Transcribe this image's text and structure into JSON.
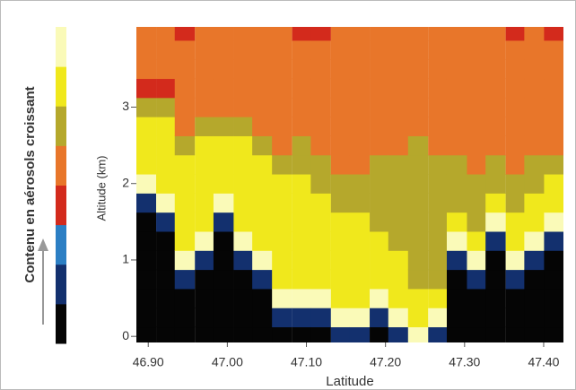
{
  "chart_data": {
    "type": "heatmap",
    "colorbar_label": "Contenu en aérosols croissant",
    "x_label": "Latitude",
    "y_label": "Altitude (km)",
    "palette": [
      "#050505",
      "#13306e",
      "#2c7fc4",
      "#d32a1c",
      "#e8762a",
      "#b5a82c",
      "#f0e81c",
      "#fafab8"
    ],
    "x": [
      46.897,
      46.922,
      46.946,
      46.971,
      46.995,
      47.02,
      47.044,
      47.069,
      47.094,
      47.118,
      47.143,
      47.167,
      47.192,
      47.216,
      47.241,
      47.266,
      47.29,
      47.315,
      47.339,
      47.364,
      47.388,
      47.413
    ],
    "y": [
      0,
      0.25,
      0.5,
      0.75,
      1,
      1.25,
      1.5,
      1.75,
      2,
      2.25,
      2.5,
      2.75,
      3,
      3.25,
      3.5,
      3.75,
      4
    ],
    "z": [
      [
        0,
        0,
        0,
        0,
        0,
        0,
        0,
        1,
        7,
        6,
        6,
        6,
        5,
        3,
        4,
        4,
        4
      ],
      [
        0,
        0,
        0,
        0,
        0,
        0,
        1,
        7,
        6,
        6,
        6,
        6,
        5,
        3,
        4,
        4,
        4
      ],
      [
        0,
        0,
        0,
        1,
        7,
        6,
        6,
        6,
        6,
        6,
        5,
        4,
        4,
        4,
        4,
        4,
        3
      ],
      [
        0,
        0,
        0,
        0,
        1,
        7,
        6,
        6,
        6,
        6,
        6,
        5,
        4,
        4,
        4,
        4,
        4
      ],
      [
        0,
        0,
        0,
        0,
        0,
        0,
        1,
        7,
        6,
        6,
        6,
        5,
        4,
        4,
        4,
        4,
        4
      ],
      [
        0,
        0,
        0,
        0,
        1,
        7,
        6,
        6,
        6,
        6,
        6,
        5,
        4,
        4,
        4,
        4,
        4
      ],
      [
        0,
        0,
        0,
        1,
        7,
        6,
        6,
        6,
        6,
        6,
        5,
        4,
        4,
        4,
        4,
        4,
        4
      ],
      [
        0,
        1,
        7,
        6,
        6,
        6,
        6,
        6,
        6,
        5,
        4,
        4,
        4,
        4,
        4,
        4,
        4
      ],
      [
        0,
        1,
        7,
        6,
        6,
        6,
        6,
        6,
        6,
        5,
        5,
        4,
        4,
        4,
        4,
        4,
        3
      ],
      [
        0,
        1,
        7,
        6,
        6,
        6,
        6,
        6,
        5,
        5,
        4,
        4,
        4,
        4,
        4,
        4,
        3
      ],
      [
        1,
        7,
        6,
        6,
        6,
        6,
        6,
        5,
        5,
        4,
        4,
        4,
        4,
        4,
        4,
        4,
        4
      ],
      [
        1,
        7,
        6,
        6,
        6,
        6,
        6,
        5,
        5,
        4,
        4,
        4,
        4,
        4,
        4,
        4,
        4
      ],
      [
        0,
        1,
        7,
        6,
        6,
        6,
        5,
        5,
        5,
        5,
        4,
        4,
        4,
        4,
        4,
        4,
        4
      ],
      [
        1,
        7,
        6,
        6,
        6,
        5,
        5,
        5,
        5,
        5,
        4,
        4,
        4,
        4,
        4,
        4,
        4
      ],
      [
        7,
        6,
        6,
        5,
        5,
        5,
        5,
        5,
        5,
        5,
        5,
        4,
        4,
        4,
        4,
        4,
        4
      ],
      [
        1,
        7,
        6,
        5,
        5,
        5,
        5,
        5,
        5,
        5,
        4,
        4,
        4,
        4,
        4,
        4,
        4
      ],
      [
        0,
        0,
        0,
        0,
        1,
        7,
        6,
        5,
        5,
        5,
        4,
        4,
        4,
        4,
        4,
        4,
        4
      ],
      [
        0,
        0,
        0,
        1,
        7,
        6,
        5,
        5,
        5,
        4,
        4,
        4,
        4,
        4,
        4,
        4,
        4
      ],
      [
        0,
        0,
        0,
        0,
        0,
        1,
        7,
        6,
        5,
        5,
        4,
        4,
        4,
        4,
        4,
        4,
        4
      ],
      [
        0,
        0,
        0,
        1,
        7,
        6,
        6,
        5,
        5,
        4,
        4,
        4,
        4,
        4,
        4,
        4,
        3
      ],
      [
        0,
        0,
        0,
        0,
        1,
        7,
        6,
        6,
        5,
        5,
        4,
        4,
        4,
        4,
        4,
        4,
        4
      ],
      [
        0,
        0,
        0,
        0,
        0,
        1,
        7,
        6,
        6,
        5,
        4,
        4,
        4,
        4,
        4,
        4,
        3
      ]
    ],
    "xlim": [
      46.885,
      47.425
    ],
    "ylim": [
      -0.08,
      4.05
    ],
    "xticks": [
      {
        "value": 46.9,
        "label": "46.90"
      },
      {
        "value": 47.0,
        "label": "47.00"
      },
      {
        "value": 47.1,
        "label": "47.10"
      },
      {
        "value": 47.2,
        "label": "47.20"
      },
      {
        "value": 47.3,
        "label": "47.30"
      },
      {
        "value": 47.4,
        "label": "47.40"
      }
    ],
    "yticks": [
      0,
      1,
      2,
      3
    ]
  }
}
